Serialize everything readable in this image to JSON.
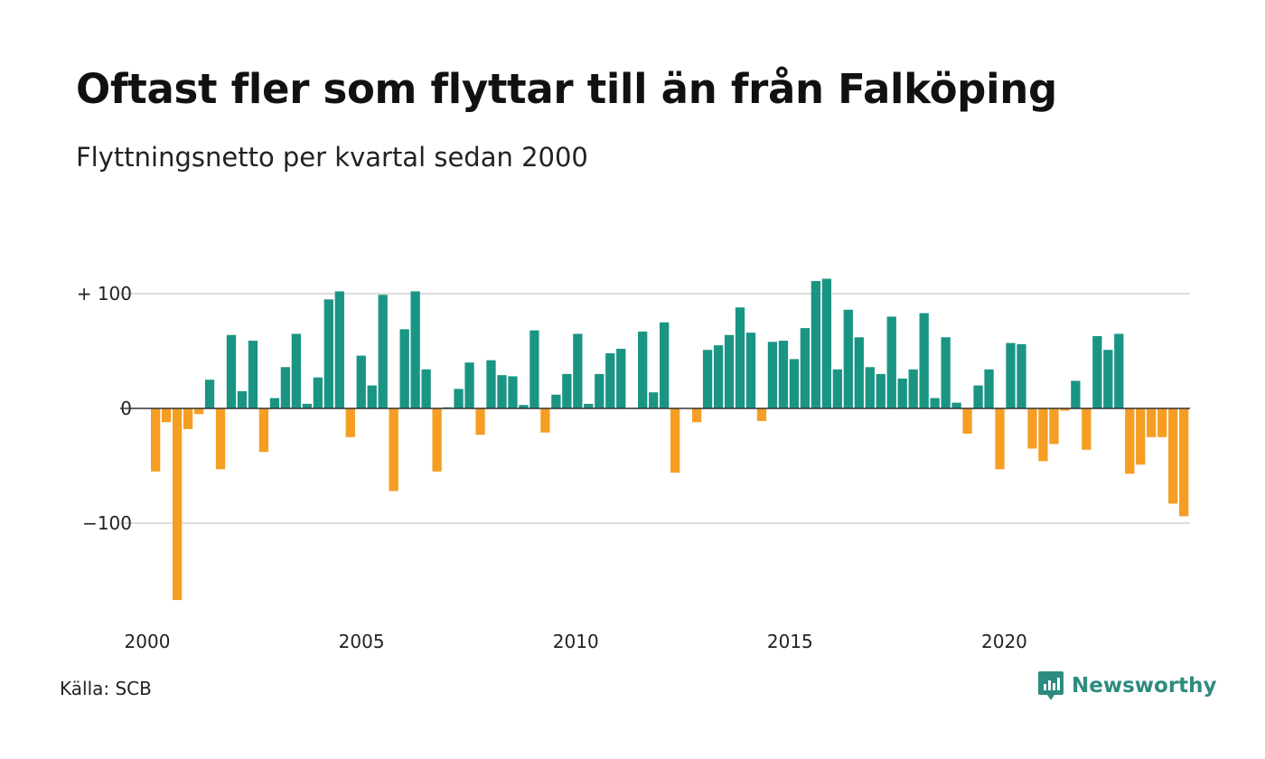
{
  "title": "Oftast fler som flyttar till än från Falköping",
  "subtitle": "Flyttningsnetto per kvartal sedan 2000",
  "source": "Källa: SCB",
  "brand": {
    "name": "Newsworthy",
    "icon": "newsworthy-logo-icon",
    "color": "#2e8b80"
  },
  "colors": {
    "positive": "#1a9584",
    "negative": "#f59e23",
    "grid": "#dddddd",
    "zero": "#333333"
  },
  "chart_data": {
    "type": "bar",
    "title": "Oftast fler som flyttar till än från Falköping",
    "subtitle": "Flyttningsnetto per kvartal sedan 2000",
    "xlabel": "",
    "ylabel": "",
    "ylim": [
      -170,
      115
    ],
    "xlim": [
      2000,
      2024.25
    ],
    "grid": true,
    "y_ticks": [
      {
        "value": 100,
        "label": "+ 100"
      },
      {
        "value": 0,
        "label": "0"
      },
      {
        "value": -100,
        "label": "−100"
      }
    ],
    "x_ticks": [
      {
        "value": 2000,
        "label": "2000"
      },
      {
        "value": 2005,
        "label": "2005"
      },
      {
        "value": 2010,
        "label": "2010"
      },
      {
        "value": 2015,
        "label": "2015"
      },
      {
        "value": 2020,
        "label": "2020"
      }
    ],
    "start_year": 2000,
    "period": "quarter",
    "values": [
      -55,
      -12,
      -167,
      -18,
      -5,
      25,
      -53,
      64,
      15,
      59,
      -38,
      9,
      36,
      65,
      4,
      27,
      95,
      102,
      -25,
      46,
      20,
      99,
      -72,
      69,
      102,
      34,
      -55,
      1,
      17,
      40,
      -23,
      42,
      29,
      28,
      3,
      68,
      -21,
      12,
      30,
      65,
      4,
      30,
      48,
      52,
      0,
      67,
      14,
      75,
      -56,
      0,
      -12,
      51,
      55,
      64,
      88,
      66,
      -11,
      58,
      59,
      43,
      70,
      111,
      113,
      34,
      86,
      62,
      36,
      30,
      80,
      26,
      34,
      83,
      9,
      62,
      5,
      -22,
      20,
      34,
      -53,
      57,
      56,
      -35,
      -46,
      -31,
      -2,
      24,
      -36,
      63,
      51,
      65,
      -57,
      -49,
      -25,
      -25,
      -83,
      -94
    ]
  }
}
